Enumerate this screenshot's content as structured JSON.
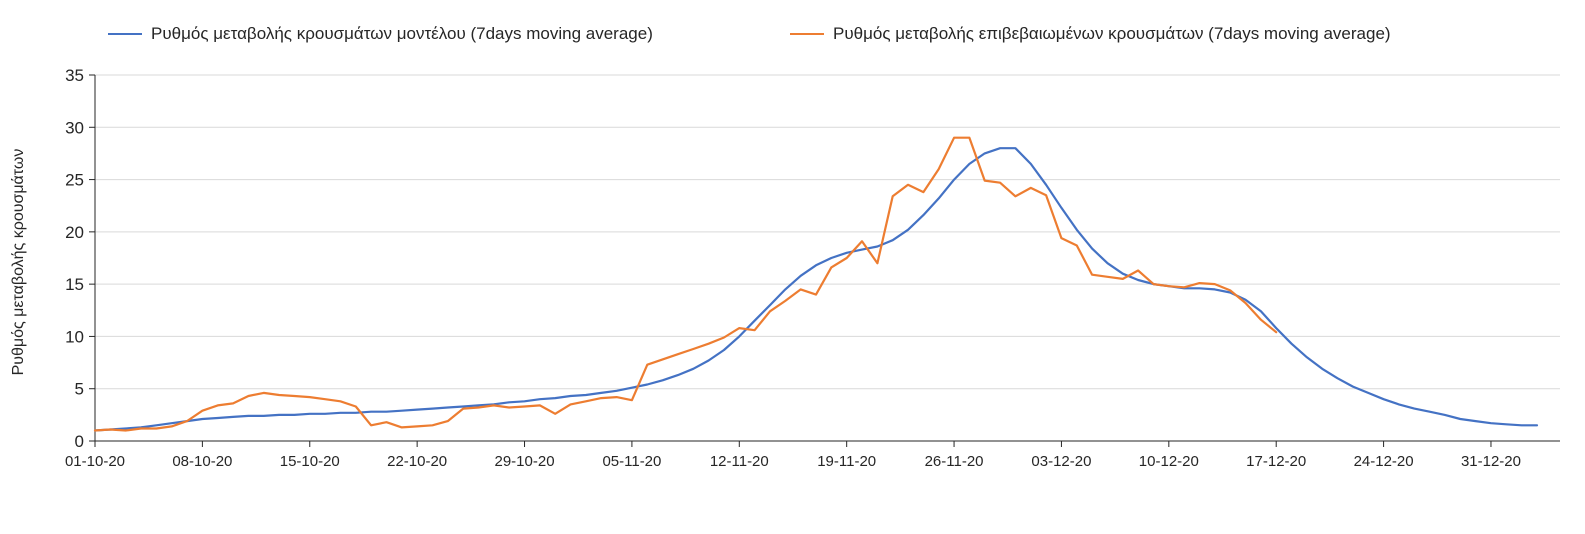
{
  "chart_data": {
    "type": "line",
    "title": "",
    "xlabel": "",
    "ylabel": "Ρυθμός μεταβολής κρουσμάτων",
    "ylim": [
      0,
      35
    ],
    "yticks": [
      0,
      5,
      10,
      15,
      20,
      25,
      30,
      35
    ],
    "x_unit": "days since 01-10-20",
    "xlim": [
      0,
      95.5
    ],
    "xticks": [
      0,
      7,
      14,
      21,
      28,
      35,
      42,
      49,
      56,
      63,
      70,
      77,
      84,
      91
    ],
    "xtick_labels": [
      "01-10-20",
      "08-10-20",
      "15-10-20",
      "22-10-20",
      "29-10-20",
      "05-11-20",
      "12-11-20",
      "19-11-20",
      "26-11-20",
      "03-12-20",
      "10-12-20",
      "17-12-20",
      "24-12-20",
      "31-12-20"
    ],
    "grid": "horizontal",
    "legend_position": "top",
    "colors": {
      "grid": "#d9d9d9",
      "axis": "#262626",
      "text": "#262626"
    },
    "series": [
      {
        "key": "model",
        "name": "Ρυθμός μεταβολής κρουσμάτων μοντέλου (7days moving average)",
        "color": "#4472C4",
        "x_start": 0,
        "values": [
          1.0,
          1.1,
          1.2,
          1.3,
          1.5,
          1.7,
          1.9,
          2.1,
          2.2,
          2.3,
          2.4,
          2.4,
          2.5,
          2.5,
          2.6,
          2.6,
          2.7,
          2.7,
          2.8,
          2.8,
          2.9,
          3.0,
          3.1,
          3.2,
          3.3,
          3.4,
          3.5,
          3.7,
          3.8,
          4.0,
          4.1,
          4.3,
          4.4,
          4.6,
          4.8,
          5.1,
          5.4,
          5.8,
          6.3,
          6.9,
          7.7,
          8.7,
          10.0,
          11.5,
          13.0,
          14.5,
          15.8,
          16.8,
          17.5,
          18.0,
          18.3,
          18.6,
          19.2,
          20.2,
          21.6,
          23.2,
          25.0,
          26.5,
          27.5,
          28.0,
          28.0,
          26.5,
          24.5,
          22.3,
          20.2,
          18.4,
          17.0,
          16.0,
          15.4,
          15.0,
          14.8,
          14.6,
          14.6,
          14.5,
          14.2,
          13.5,
          12.4,
          10.8,
          9.3,
          8.0,
          6.9,
          6.0,
          5.2,
          4.6,
          4.0,
          3.5,
          3.1,
          2.8,
          2.5,
          2.1,
          1.9,
          1.7,
          1.6,
          1.5,
          1.5
        ]
      },
      {
        "key": "confirmed",
        "name": "Ρυθμός μεταβολής επιβεβαιωμένων κρουσμάτων (7days moving average)",
        "color": "#ED7D31",
        "x_start": 0,
        "values": [
          1.0,
          1.1,
          1.0,
          1.2,
          1.2,
          1.4,
          1.9,
          2.9,
          3.4,
          3.6,
          4.3,
          4.6,
          4.4,
          4.3,
          4.2,
          4.0,
          3.8,
          3.3,
          1.5,
          1.8,
          1.3,
          1.4,
          1.5,
          1.9,
          3.1,
          3.2,
          3.4,
          3.2,
          3.3,
          3.4,
          2.6,
          3.5,
          3.8,
          4.1,
          4.2,
          3.9,
          7.3,
          7.8,
          8.3,
          8.8,
          9.3,
          9.9,
          10.8,
          10.6,
          12.4,
          13.4,
          14.5,
          14.0,
          16.6,
          17.5,
          19.1,
          17.0,
          23.4,
          24.5,
          23.8,
          26.0,
          29.0,
          29.0,
          24.9,
          24.7,
          23.4,
          24.2,
          23.5,
          19.4,
          18.7,
          15.9,
          15.7,
          15.5,
          16.3,
          15.0,
          14.8,
          14.7,
          15.1,
          15.0,
          14.4,
          13.2,
          11.6,
          10.4
        ]
      }
    ]
  }
}
